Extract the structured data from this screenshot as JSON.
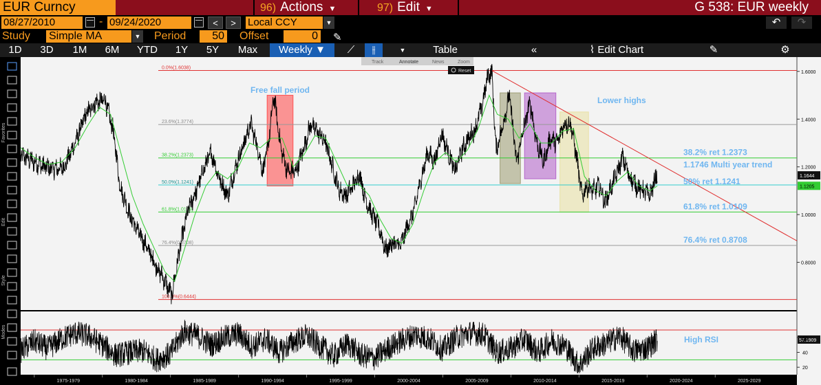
{
  "header": {
    "ticker": "EUR Curncy",
    "actions_num": "96)",
    "actions_label": "Actions",
    "edit_num": "97)",
    "edit_label": "Edit",
    "page_title": "G 538: EUR weekly"
  },
  "controls": {
    "start_date": "08/27/2010",
    "date_separator": "-",
    "end_date": "09/24/2020",
    "currency": "Local CCY",
    "study_label": "Study",
    "study_value": "Simple MA",
    "period_label": "Period",
    "period_value": "50",
    "offset_label": "Offset",
    "offset_value": "0"
  },
  "periods": [
    "1D",
    "3D",
    "1M",
    "6M",
    "YTD",
    "1Y",
    "5Y",
    "Max"
  ],
  "frequency": "Weekly",
  "toolbar": {
    "table_label": "Table",
    "edit_chart_label": "Edit Chart"
  },
  "mini_toolbar": [
    "Track",
    "Annotate",
    "News",
    "Zoom"
  ],
  "reset_label": "Reset",
  "side_tabs": [
    "Favorites",
    "Edit",
    "Style",
    "Modes"
  ],
  "colors": {
    "price": "#000000",
    "ma": "#33cc33",
    "fib_red": "#e03030",
    "fib_green": "#33cc33",
    "fib_cyan": "#33cccc",
    "fib_grey": "#999999",
    "annotation": "#6fb6f0",
    "free_fall_box": "#ff4444",
    "grey_box": "#9a9a70",
    "purple_box": "#b05cc8",
    "yellow_box": "#e8e0a0",
    "trendline": "#e03030"
  },
  "chart_data": {
    "type": "line",
    "title": "G 538: EUR weekly",
    "x_range": [
      1974,
      2031
    ],
    "ylim": [
      0.6,
      1.66
    ],
    "x_tick_labels": [
      "1975-1979",
      "1980-1984",
      "1985-1989",
      "1990-1994",
      "1995-1999",
      "2000-2004",
      "2005-2009",
      "2010-2014",
      "2015-2019",
      "2020-2024",
      "2025-2029"
    ],
    "y_ticks": [
      {
        "value": 0.8,
        "label": "0.8000"
      },
      {
        "value": 1.0,
        "label": "1.0000"
      },
      {
        "value": 1.2,
        "label": "1.2000"
      },
      {
        "value": 1.4,
        "label": "1.4000"
      },
      {
        "value": 1.6,
        "label": "1.6000"
      }
    ],
    "series": [
      {
        "name": "EUR",
        "points": [
          [
            1974.0,
            1.25
          ],
          [
            1975.0,
            1.22
          ],
          [
            1975.8,
            1.2
          ],
          [
            1976.5,
            1.19
          ],
          [
            1977.2,
            1.2
          ],
          [
            1978.0,
            1.3
          ],
          [
            1978.8,
            1.42
          ],
          [
            1979.5,
            1.47
          ],
          [
            1980.2,
            1.48
          ],
          [
            1980.8,
            1.35
          ],
          [
            1981.3,
            1.12
          ],
          [
            1982.0,
            1.0
          ],
          [
            1982.7,
            0.92
          ],
          [
            1983.3,
            0.86
          ],
          [
            1984.0,
            0.78
          ],
          [
            1984.6,
            0.72
          ],
          [
            1985.1,
            0.66
          ],
          [
            1985.7,
            0.86
          ],
          [
            1986.3,
            1.02
          ],
          [
            1986.9,
            1.1
          ],
          [
            1987.5,
            1.2
          ],
          [
            1988.0,
            1.26
          ],
          [
            1988.6,
            1.15
          ],
          [
            1989.2,
            1.08
          ],
          [
            1989.8,
            1.2
          ],
          [
            1990.4,
            1.3
          ],
          [
            1990.9,
            1.38
          ],
          [
            1991.4,
            1.28
          ],
          [
            1991.8,
            1.18
          ],
          [
            1992.2,
            1.3
          ],
          [
            1992.6,
            1.5
          ],
          [
            1993.1,
            1.28
          ],
          [
            1993.6,
            1.18
          ],
          [
            1994.2,
            1.18
          ],
          [
            1994.8,
            1.28
          ],
          [
            1995.3,
            1.38
          ],
          [
            1995.9,
            1.34
          ],
          [
            1996.4,
            1.3
          ],
          [
            1996.9,
            1.2
          ],
          [
            1997.4,
            1.1
          ],
          [
            1997.9,
            1.08
          ],
          [
            1998.4,
            1.12
          ],
          [
            1998.9,
            1.17
          ],
          [
            1999.3,
            1.07
          ],
          [
            1999.8,
            1.0
          ],
          [
            2000.3,
            0.95
          ],
          [
            2000.8,
            0.85
          ],
          [
            2001.3,
            0.88
          ],
          [
            2001.9,
            0.87
          ],
          [
            2002.4,
            0.95
          ],
          [
            2002.9,
            1.02
          ],
          [
            2003.4,
            1.15
          ],
          [
            2003.9,
            1.26
          ],
          [
            2004.4,
            1.22
          ],
          [
            2004.9,
            1.34
          ],
          [
            2005.4,
            1.26
          ],
          [
            2005.9,
            1.18
          ],
          [
            2006.4,
            1.27
          ],
          [
            2006.9,
            1.32
          ],
          [
            2007.4,
            1.36
          ],
          [
            2007.9,
            1.46
          ],
          [
            2008.3,
            1.58
          ],
          [
            2008.6,
            1.6
          ],
          [
            2008.9,
            1.27
          ],
          [
            2009.3,
            1.35
          ],
          [
            2009.9,
            1.5
          ],
          [
            2010.4,
            1.22
          ],
          [
            2010.9,
            1.35
          ],
          [
            2011.4,
            1.47
          ],
          [
            2011.9,
            1.3
          ],
          [
            2012.4,
            1.22
          ],
          [
            2012.9,
            1.32
          ],
          [
            2013.4,
            1.3
          ],
          [
            2013.9,
            1.38
          ],
          [
            2014.4,
            1.38
          ],
          [
            2014.8,
            1.25
          ],
          [
            2015.2,
            1.08
          ],
          [
            2015.6,
            1.12
          ],
          [
            2016.0,
            1.1
          ],
          [
            2016.5,
            1.12
          ],
          [
            2016.9,
            1.05
          ],
          [
            2017.4,
            1.12
          ],
          [
            2017.9,
            1.19
          ],
          [
            2018.2,
            1.24
          ],
          [
            2018.7,
            1.16
          ],
          [
            2019.2,
            1.12
          ],
          [
            2019.7,
            1.1
          ],
          [
            2020.2,
            1.08
          ],
          [
            2020.5,
            1.13
          ],
          [
            2020.75,
            1.18
          ]
        ]
      },
      {
        "name": "Simple MA 50",
        "points": [
          [
            1974.0,
            1.28
          ],
          [
            1975.0,
            1.24
          ],
          [
            1976.0,
            1.21
          ],
          [
            1977.0,
            1.22
          ],
          [
            1978.0,
            1.28
          ],
          [
            1979.0,
            1.38
          ],
          [
            1979.8,
            1.45
          ],
          [
            1980.6,
            1.42
          ],
          [
            1981.4,
            1.25
          ],
          [
            1982.2,
            1.08
          ],
          [
            1983.0,
            0.96
          ],
          [
            1983.8,
            0.86
          ],
          [
            1984.6,
            0.76
          ],
          [
            1985.3,
            0.72
          ],
          [
            1986.0,
            0.85
          ],
          [
            1986.8,
            1.0
          ],
          [
            1987.6,
            1.12
          ],
          [
            1988.4,
            1.18
          ],
          [
            1989.2,
            1.15
          ],
          [
            1990.0,
            1.2
          ],
          [
            1990.8,
            1.3
          ],
          [
            1991.6,
            1.28
          ],
          [
            1992.4,
            1.32
          ],
          [
            1993.2,
            1.32
          ],
          [
            1994.0,
            1.2
          ],
          [
            1994.8,
            1.25
          ],
          [
            1995.6,
            1.33
          ],
          [
            1996.4,
            1.32
          ],
          [
            1997.2,
            1.22
          ],
          [
            1998.0,
            1.12
          ],
          [
            1998.8,
            1.13
          ],
          [
            1999.6,
            1.08
          ],
          [
            2000.4,
            0.98
          ],
          [
            2001.2,
            0.9
          ],
          [
            2002.0,
            0.88
          ],
          [
            2002.8,
            0.96
          ],
          [
            2003.6,
            1.1
          ],
          [
            2004.4,
            1.22
          ],
          [
            2005.2,
            1.26
          ],
          [
            2006.0,
            1.22
          ],
          [
            2006.8,
            1.27
          ],
          [
            2007.6,
            1.36
          ],
          [
            2008.4,
            1.5
          ],
          [
            2009.0,
            1.42
          ],
          [
            2009.8,
            1.4
          ],
          [
            2010.6,
            1.32
          ],
          [
            2011.4,
            1.38
          ],
          [
            2012.2,
            1.3
          ],
          [
            2013.0,
            1.3
          ],
          [
            2013.8,
            1.35
          ],
          [
            2014.6,
            1.36
          ],
          [
            2015.4,
            1.16
          ],
          [
            2016.2,
            1.1
          ],
          [
            2017.0,
            1.08
          ],
          [
            2017.8,
            1.14
          ],
          [
            2018.6,
            1.18
          ],
          [
            2019.4,
            1.12
          ],
          [
            2020.2,
            1.1
          ],
          [
            2020.75,
            1.12
          ]
        ]
      }
    ],
    "fib_levels": [
      {
        "label": "0.0%(1.6038)",
        "value": 1.6038,
        "color": "#e03030"
      },
      {
        "label": "23.6%(1.3774)",
        "value": 1.3774,
        "color": "#999999"
      },
      {
        "label": "38.2%(1.2373)",
        "value": 1.2373,
        "color": "#33cc33"
      },
      {
        "label": "50.0%(1.1241)",
        "value": 1.1241,
        "color": "#33cccc"
      },
      {
        "label": "61.8%(1.0109)",
        "value": 1.0109,
        "color": "#33cc33"
      },
      {
        "label": "76.4%(0.8708)",
        "value": 0.8708,
        "color": "#999999"
      },
      {
        "label": "100.0%(0.6444)",
        "value": 0.6444,
        "color": "#e03030"
      }
    ],
    "fib_annotations": [
      {
        "text": "38.2% ret 1.2373",
        "value": 1.2373
      },
      {
        "text": "50% ret 1.1241",
        "value": 1.1241
      },
      {
        "text": "61.8% ret 1.0109",
        "value": 1.0109
      },
      {
        "text": "76.4% ret 0.8708",
        "value": 0.8708
      }
    ],
    "trendline": {
      "from": [
        2008.6,
        1.6038
      ],
      "to": [
        2031.0,
        0.89
      ],
      "label": "1.1746 Multi year trend",
      "value": 1.1746
    },
    "boxes": [
      {
        "x0": 1992.1,
        "x1": 1994.0,
        "y0": 1.12,
        "y1": 1.5,
        "color": "#ff4444",
        "label": "Free fall period"
      },
      {
        "x0": 2009.2,
        "x1": 2010.7,
        "y0": 1.13,
        "y1": 1.51,
        "color": "#9a9a70",
        "label": ""
      },
      {
        "x0": 2011.0,
        "x1": 2013.3,
        "y0": 1.15,
        "y1": 1.51,
        "color": "#b05cc8",
        "label": ""
      },
      {
        "x0": 2013.6,
        "x1": 2015.7,
        "y0": 1.01,
        "y1": 1.43,
        "color": "#e8e0a0",
        "label": "Lower highs"
      }
    ],
    "price_labels": [
      {
        "text": "1.1644",
        "value": 1.1644,
        "style": "dark"
      },
      {
        "text": "1.1205",
        "value": 1.1205,
        "style": "green"
      }
    ],
    "rsi": {
      "name": "RSI",
      "ylim": [
        10,
        95
      ],
      "y_ticks": [
        {
          "value": 20,
          "label": "20"
        },
        {
          "value": 40,
          "label": "40"
        },
        {
          "value": 60,
          "label": "60"
        }
      ],
      "upper": 70,
      "lower": 30,
      "current_label": "57.1909",
      "current_value": 57.19,
      "annotation": "High RSI",
      "points": [
        [
          1974.0,
          42
        ],
        [
          1975.0,
          55
        ],
        [
          1976.0,
          45
        ],
        [
          1977.0,
          58
        ],
        [
          1978.0,
          66
        ],
        [
          1979.0,
          62
        ],
        [
          1980.0,
          50
        ],
        [
          1981.0,
          36
        ],
        [
          1982.0,
          40
        ],
        [
          1983.0,
          42
        ],
        [
          1984.0,
          30
        ],
        [
          1985.0,
          38
        ],
        [
          1986.0,
          68
        ],
        [
          1987.0,
          62
        ],
        [
          1988.0,
          50
        ],
        [
          1989.0,
          60
        ],
        [
          1990.0,
          65
        ],
        [
          1991.0,
          48
        ],
        [
          1992.0,
          58
        ],
        [
          1993.0,
          40
        ],
        [
          1994.0,
          54
        ],
        [
          1995.0,
          62
        ],
        [
          1996.0,
          48
        ],
        [
          1997.0,
          35
        ],
        [
          1998.0,
          52
        ],
        [
          1999.0,
          36
        ],
        [
          2000.0,
          32
        ],
        [
          2001.0,
          46
        ],
        [
          2002.0,
          56
        ],
        [
          2003.0,
          64
        ],
        [
          2004.0,
          58
        ],
        [
          2005.0,
          44
        ],
        [
          2006.0,
          60
        ],
        [
          2007.0,
          66
        ],
        [
          2008.0,
          64
        ],
        [
          2009.0,
          40
        ],
        [
          2010.0,
          45
        ],
        [
          2011.0,
          58
        ],
        [
          2012.0,
          40
        ],
        [
          2013.0,
          56
        ],
        [
          2014.0,
          48
        ],
        [
          2015.0,
          22
        ],
        [
          2016.0,
          45
        ],
        [
          2017.0,
          52
        ],
        [
          2018.0,
          62
        ],
        [
          2019.0,
          42
        ],
        [
          2020.0,
          46
        ],
        [
          2020.75,
          57.19
        ]
      ]
    }
  }
}
